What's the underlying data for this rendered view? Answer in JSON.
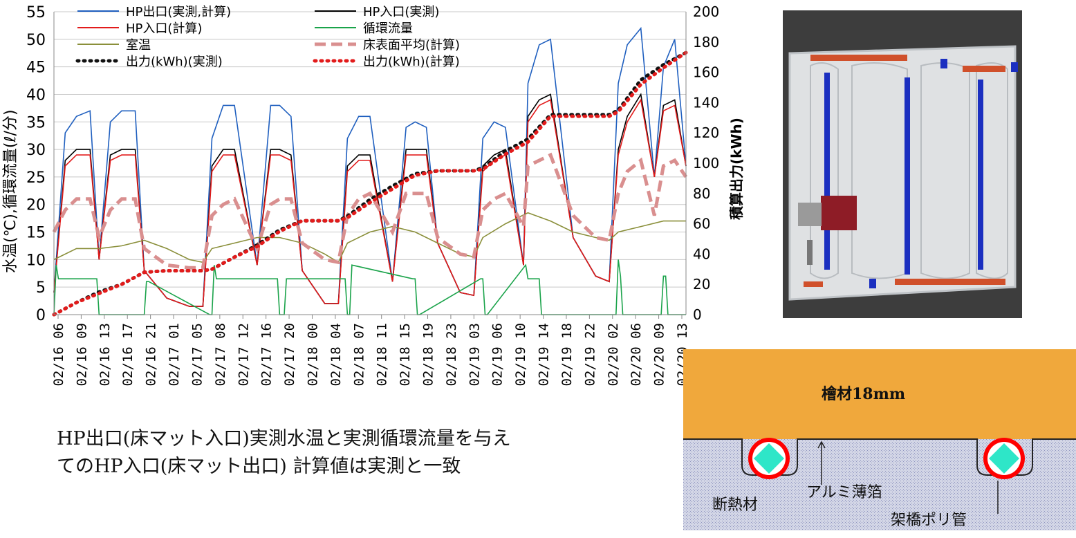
{
  "chart_data": {
    "type": "line",
    "x_ticks": [
      "02/16 06",
      "02/16 09",
      "02/16 13",
      "02/16 17",
      "02/16 21",
      "02/17 01",
      "02/17 05",
      "02/17 08",
      "02/17 12",
      "02/17 16",
      "02/17 20",
      "02/18 00",
      "02/18 04",
      "02/18 07",
      "02/18 11",
      "02/18 15",
      "02/18 19",
      "02/18 23",
      "02/19 03",
      "02/19 06",
      "02/19 10",
      "02/19 14",
      "02/19 18",
      "02/19 22",
      "02/20 02",
      "02/20 06",
      "02/20 09",
      "02/20 13"
    ],
    "x_range": [
      0,
      28
    ],
    "ylabel": "水温(℃),循環流量(ℓ/分)",
    "ylabel_right": "積算出力(kWh)",
    "ylim": [
      0,
      55
    ],
    "yticks": [
      0,
      5,
      10,
      15,
      20,
      25,
      30,
      35,
      40,
      45,
      50,
      55
    ],
    "ylim_right": [
      0,
      200
    ],
    "yticks_right": [
      0,
      20,
      40,
      60,
      80,
      100,
      120,
      140,
      160,
      180,
      200
    ],
    "legend_position": "top",
    "series": [
      {
        "name": "HP出口(実測,計算)",
        "color": "#1f5fbf",
        "style": "solid",
        "axis": "left",
        "x": [
          0,
          0.5,
          1,
          1.6,
          2,
          2.5,
          3,
          3.6,
          4,
          5,
          6,
          6.6,
          7,
          7.5,
          8,
          9,
          9.6,
          10,
          10.5,
          11,
          12,
          12.6,
          13,
          13.5,
          14,
          15,
          15.6,
          16,
          16.5,
          17,
          18,
          18.6,
          19,
          19.5,
          20,
          20.8,
          21,
          21.5,
          22,
          23,
          24,
          24.6,
          25,
          25.4,
          26,
          26.6,
          27,
          27.5,
          28
        ],
        "y": [
          4,
          33,
          36,
          37,
          10,
          35,
          37,
          37,
          8,
          3,
          1.5,
          1.5,
          32,
          38,
          38,
          9,
          38,
          38,
          36,
          8,
          2,
          2,
          32,
          36,
          36,
          6,
          34,
          35,
          34,
          13,
          4,
          3.5,
          32,
          35,
          34,
          9,
          42,
          49,
          50,
          14,
          7,
          6,
          42,
          49,
          52,
          25,
          45,
          50,
          27
        ]
      },
      {
        "name": "HP入口(実測)",
        "color": "#000000",
        "style": "solid",
        "axis": "left",
        "x": [
          0,
          0.5,
          1,
          1.6,
          2,
          2.5,
          3,
          3.6,
          4,
          5,
          6,
          6.6,
          7,
          7.5,
          8,
          9,
          9.6,
          10,
          10.5,
          11,
          12,
          12.6,
          13,
          13.5,
          14,
          15,
          15.6,
          16,
          16.5,
          17,
          18,
          18.6,
          19,
          19.5,
          20,
          20.8,
          21,
          21.5,
          22,
          23,
          24,
          24.6,
          25,
          25.4,
          26,
          26.6,
          27,
          27.5,
          28
        ],
        "y": [
          4,
          28,
          30,
          30,
          10,
          29,
          30,
          30,
          8,
          3,
          1.5,
          1.5,
          27,
          30,
          30,
          9,
          30,
          30,
          29,
          8,
          2,
          2,
          27,
          29,
          29,
          6,
          30,
          30,
          30,
          13,
          4,
          3.5,
          27,
          29,
          30,
          9,
          36,
          39,
          40,
          14,
          7,
          6,
          30,
          36,
          40,
          25,
          38,
          39,
          27
        ]
      },
      {
        "name": "HP入口(計算)",
        "color": "#e21b1b",
        "style": "solid",
        "axis": "left",
        "x": [
          0,
          0.5,
          1,
          1.6,
          2,
          2.5,
          3,
          3.6,
          4,
          5,
          6,
          6.6,
          7,
          7.5,
          8,
          9,
          9.6,
          10,
          10.5,
          11,
          12,
          12.6,
          13,
          13.5,
          14,
          15,
          15.6,
          16,
          16.5,
          17,
          18,
          18.6,
          19,
          19.5,
          20,
          20.8,
          21,
          21.5,
          22,
          23,
          24,
          24.6,
          25,
          25.4,
          26,
          26.6,
          27,
          27.5,
          28
        ],
        "y": [
          4,
          27,
          29,
          29,
          10,
          28,
          29,
          29,
          8,
          3,
          1.5,
          1.5,
          26,
          29,
          29,
          9,
          29,
          29,
          28,
          8,
          2,
          2,
          26,
          28,
          28,
          6,
          29,
          29,
          29,
          13,
          4,
          3.5,
          26,
          28,
          29,
          9,
          35,
          38,
          39,
          14,
          7,
          6,
          29,
          35,
          39,
          25,
          37,
          38,
          27
        ]
      },
      {
        "name": "循環流量",
        "color": "#1aa34a",
        "style": "solid",
        "axis": "left",
        "x": [
          0,
          0.1,
          0.2,
          1.9,
          2,
          4,
          4.1,
          4.2,
          6.9,
          7,
          7.1,
          7.2,
          9.9,
          10,
          10.2,
          10.3,
          12.9,
          13,
          13.1,
          13.2,
          15.9,
          16,
          16.1,
          16.2,
          18.9,
          19,
          19.1,
          19.2,
          20.9,
          21,
          21.5,
          21.6,
          24.9,
          25,
          25.1,
          25.2,
          26.9,
          27,
          27.1,
          27.2,
          27.9,
          28
        ],
        "y": [
          0,
          9,
          6.5,
          6.5,
          0,
          0,
          6,
          6,
          0,
          0,
          9,
          6.5,
          6.5,
          0,
          0,
          6.5,
          6.5,
          0,
          0,
          9,
          6.5,
          6.5,
          0,
          0,
          6.5,
          6.5,
          0,
          0,
          9,
          6.5,
          6.5,
          0,
          0,
          10,
          7,
          0,
          0,
          7,
          7,
          0,
          0,
          0
        ]
      },
      {
        "name": "室温",
        "color": "#8a8f3a",
        "style": "solid",
        "axis": "left",
        "x": [
          0,
          1,
          2,
          3,
          4,
          5,
          6,
          6.6,
          7,
          8,
          9,
          10,
          11,
          12,
          12.6,
          13,
          14,
          15,
          16,
          17,
          18,
          18.6,
          19,
          20,
          21,
          22,
          23,
          24,
          24.6,
          25,
          26,
          27,
          28
        ],
        "y": [
          10,
          12,
          12,
          12.5,
          13.5,
          12,
          10,
          9.5,
          12,
          13,
          14,
          14,
          13,
          11,
          9.5,
          13,
          15,
          16,
          15,
          13,
          11,
          10.5,
          14,
          16.5,
          18.5,
          17,
          15,
          14,
          13.5,
          15,
          16,
          17,
          17
        ]
      },
      {
        "name": "床表面平均(計算)",
        "color": "#d98f8f",
        "style": "dashed",
        "axis": "left",
        "x": [
          0,
          0.5,
          1,
          1.6,
          2,
          2.5,
          3,
          3.6,
          4,
          5,
          6,
          6.6,
          7,
          7.5,
          8,
          9,
          9.6,
          10,
          10.5,
          11,
          12,
          12.6,
          13,
          13.5,
          14,
          15,
          15.6,
          16,
          16.5,
          17,
          18,
          18.6,
          19,
          19.5,
          20,
          20.8,
          21,
          21.5,
          22,
          23,
          24,
          24.6,
          25,
          25.4,
          26,
          26.6,
          27,
          27.5,
          28
        ],
        "y": [
          15,
          19,
          21,
          21,
          14,
          19,
          21,
          21,
          12,
          9,
          8.5,
          8.5,
          18,
          20,
          21,
          12,
          20,
          21,
          21,
          13,
          10,
          9.5,
          18,
          21,
          22,
          15,
          22,
          22,
          22,
          14,
          11,
          10.5,
          19,
          21,
          22,
          16,
          27,
          28,
          29,
          18,
          14,
          13.5,
          22,
          26,
          28,
          18,
          27,
          28,
          25
        ]
      },
      {
        "name": "出力(kWh)(実測)",
        "color": "#111111",
        "style": "dotted",
        "axis": "right",
        "x": [
          0,
          1,
          2,
          3,
          4,
          5,
          6,
          6.6,
          7,
          8,
          9,
          10,
          11,
          12,
          12.6,
          13,
          14,
          15,
          16,
          17,
          18,
          18.6,
          19,
          20,
          21,
          22,
          23,
          24,
          24.6,
          25,
          26,
          27,
          28
        ],
        "y": [
          0,
          8,
          15,
          20,
          28,
          29,
          29,
          29,
          30,
          38,
          46,
          56,
          62,
          62,
          62,
          65,
          76,
          85,
          93,
          95,
          95,
          95,
          97,
          108,
          116,
          132,
          132,
          132,
          132,
          135,
          155,
          165,
          173
        ]
      },
      {
        "name": "出力(kWh)(計算)",
        "color": "#e21b1b",
        "style": "dotted",
        "axis": "right",
        "x": [
          0,
          1,
          2,
          3,
          4,
          5,
          6,
          6.6,
          7,
          8,
          9,
          10,
          11,
          12,
          12.6,
          13,
          14,
          15,
          16,
          17,
          18,
          18.6,
          19,
          20,
          21,
          22,
          23,
          24,
          24.6,
          25,
          26,
          27,
          28
        ],
        "y": [
          0,
          8,
          14,
          20,
          28,
          29,
          29,
          29,
          30,
          38,
          45,
          55,
          62,
          62,
          62,
          64,
          74,
          83,
          92,
          95,
          95,
          95,
          96,
          106,
          114,
          131,
          131,
          131,
          131,
          134,
          152,
          163,
          173
        ]
      }
    ]
  },
  "caption": {
    "line1": "HP出口(床マット入口)実測水温と実測循環流量を与え",
    "line2": "てのHP入口(床マット出口) 計算値は実測と一致"
  },
  "diagram": {
    "board_label": "檜材18mm",
    "foil_label": "アルミ薄箔",
    "insulation_label": "断熱材",
    "pipe_label": "架橋ポリ管",
    "colors": {
      "wood": "#f0a83c",
      "insulation": "#cfd3e6",
      "pipe_ring": "#ff0000",
      "pipe_core": "#2ee6c8"
    }
  }
}
